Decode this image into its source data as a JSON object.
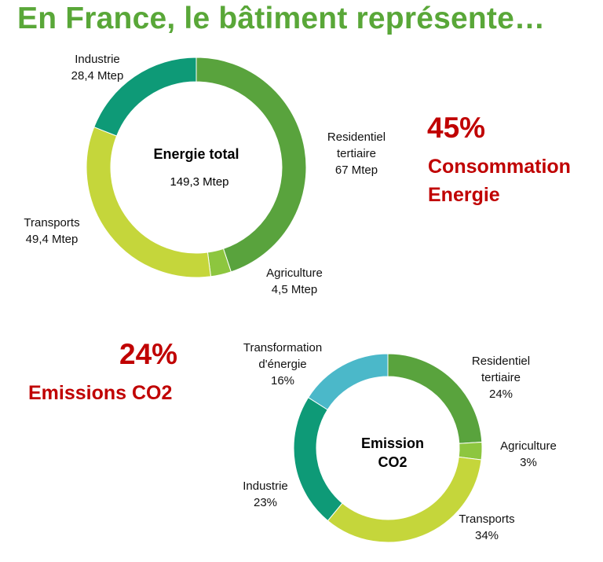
{
  "title": "En France, le bâtiment représente…",
  "energy_stat": {
    "percent": "45%",
    "line1": "Consommation",
    "line2": "Energie"
  },
  "co2_stat": {
    "percent": "24%",
    "label": "Emissions CO2"
  },
  "chart_data": [
    {
      "type": "pie",
      "title": "Energie total",
      "subtitle": "149,3 Mtep",
      "unit": "Mtep",
      "slices": [
        {
          "name": "Residentiel tertiaire",
          "label_lines": [
            "Residentiel",
            "tertiaire",
            "67 Mtep"
          ],
          "value": 67,
          "color": "#59a33d"
        },
        {
          "name": "Agriculture",
          "label_lines": [
            "Agriculture",
            "4,5 Mtep"
          ],
          "value": 4.5,
          "color": "#8dc63f"
        },
        {
          "name": "Transports",
          "label_lines": [
            "Transports",
            "49,4 Mtep"
          ],
          "value": 49.4,
          "color": "#c5d63b"
        },
        {
          "name": "Industrie",
          "label_lines": [
            "Industrie",
            "28,4 Mtep"
          ],
          "value": 28.4,
          "color": "#0e9a77"
        }
      ]
    },
    {
      "type": "pie",
      "title": "Emission CO2",
      "title_lines": [
        "Emission",
        "CO2"
      ],
      "unit": "%",
      "slices": [
        {
          "name": "Residentiel tertiaire",
          "label_lines": [
            "Residentiel",
            "tertiaire",
            "24%"
          ],
          "value": 24,
          "color": "#59a33d"
        },
        {
          "name": "Agriculture",
          "label_lines": [
            "Agriculture",
            "3%"
          ],
          "value": 3,
          "color": "#8dc63f"
        },
        {
          "name": "Transports",
          "label_lines": [
            "Transports",
            "34%"
          ],
          "value": 34,
          "color": "#c5d63b"
        },
        {
          "name": "Industrie",
          "label_lines": [
            "Industrie",
            "23%"
          ],
          "value": 23,
          "color": "#0e9a77"
        },
        {
          "name": "Transformation d'énergie",
          "label_lines": [
            "Transformation",
            "d'énergie",
            "16%"
          ],
          "value": 16,
          "color": "#4bb8c9"
        }
      ]
    }
  ]
}
